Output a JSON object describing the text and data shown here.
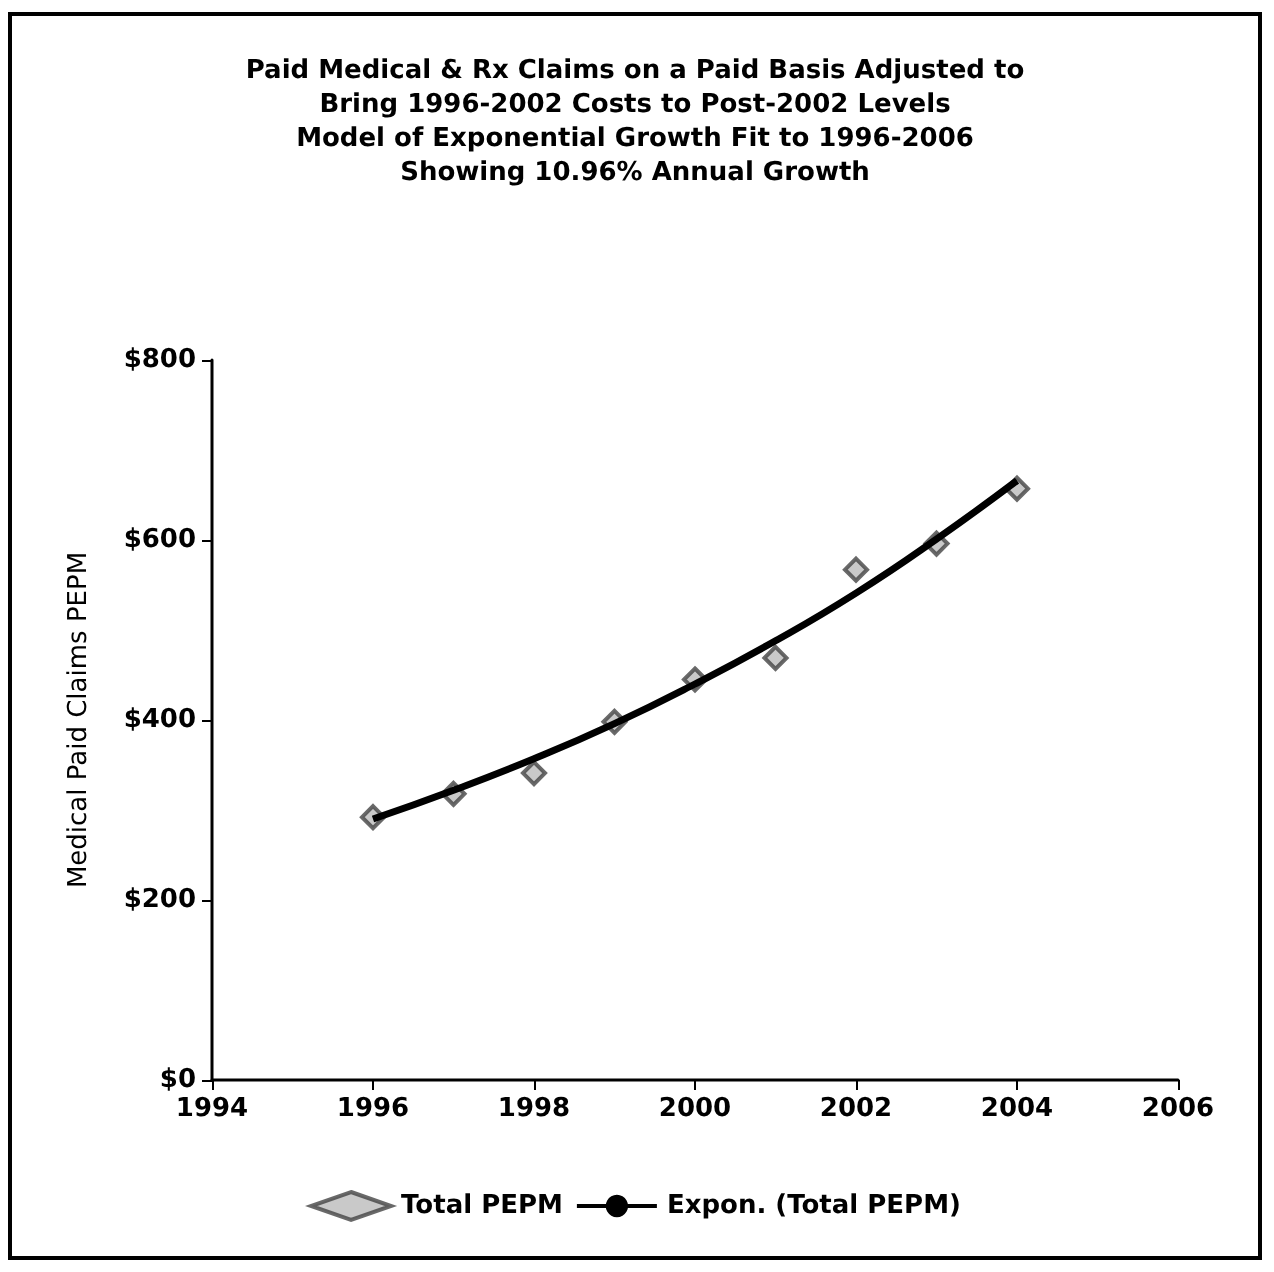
{
  "chart_data": {
    "type": "scatter",
    "title": "Paid Medical & Rx Claims on a Paid Basis Adjusted to\nBring 1996-2002 Costs to Post-2002 Levels\nModel of Exponential Growth Fit to 1996-2006\nShowing 10.96% Annual Growth",
    "ylabel": "Medical Paid Claims PEPM",
    "x": [
      1996,
      1997,
      1998,
      1999,
      2000,
      2001,
      2002,
      2003,
      2004
    ],
    "series": [
      {
        "name": "Total PEPM",
        "color": "#444444",
        "marker": "diamond",
        "values": [
          292,
          318,
          341,
          398,
          445,
          469,
          567,
          596,
          657
        ]
      },
      {
        "name": "Expon. (Total PEPM)",
        "type": "line",
        "color": "#000000",
        "marker": "none",
        "line_style": "solid",
        "x": [
          1996,
          1997,
          1998,
          1999,
          2000,
          2001,
          2002,
          2003,
          2004
        ],
        "values": [
          290,
          322,
          357,
          396,
          440,
          488,
          541,
          601,
          666
        ]
      }
    ],
    "xlim": [
      1994,
      2006
    ],
    "xticks": [
      1994,
      1996,
      1998,
      2000,
      2002,
      2004,
      2006
    ],
    "ylim": [
      0,
      800
    ],
    "yticks": [
      {
        "value": 0,
        "label": "$0"
      },
      {
        "value": 200,
        "label": "$200"
      },
      {
        "value": 400,
        "label": "$400"
      },
      {
        "value": 600,
        "label": "$600"
      },
      {
        "value": 800,
        "label": "$800"
      }
    ],
    "grid": false,
    "legend": "bottom"
  }
}
